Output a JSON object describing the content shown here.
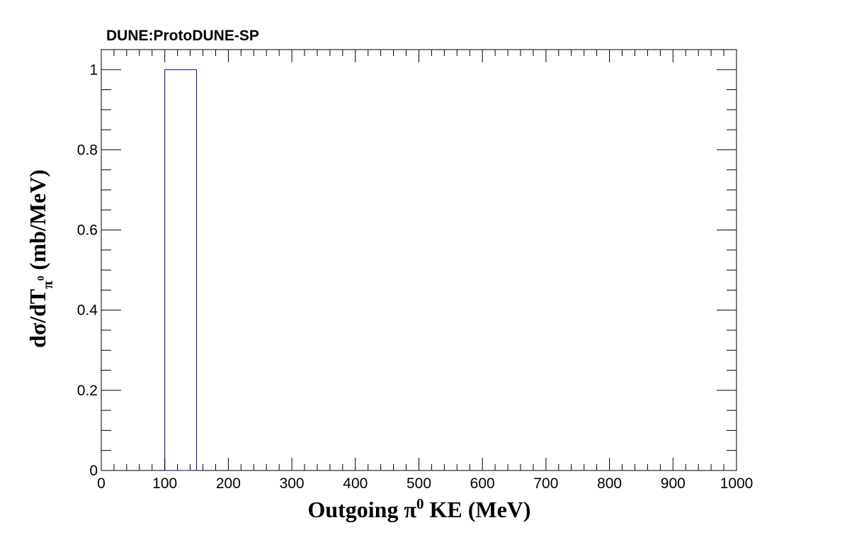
{
  "chart_data": {
    "type": "bar",
    "title": "DUNE:ProtoDUNE-SP",
    "xlabel": {
      "prefix": "Outgoing  π",
      "sup": "0",
      "suffix": " KE (MeV)"
    },
    "ylabel": {
      "prefix": "dσ/dT",
      "sub": "π",
      "subsup": "0",
      "suffix": " (mb/MeV)"
    },
    "xlim": [
      0,
      1000
    ],
    "ylim": [
      0,
      1.05
    ],
    "x_ticks": [
      0,
      100,
      200,
      300,
      400,
      500,
      600,
      700,
      800,
      900,
      1000
    ],
    "x_tick_labels": [
      "0",
      "100",
      "200",
      "300",
      "400",
      "500",
      "600",
      "700",
      "800",
      "900",
      "1000"
    ],
    "y_ticks": [
      0,
      0.2,
      0.4,
      0.6,
      0.8,
      1
    ],
    "y_tick_labels": [
      "0",
      "0.2",
      "0.4",
      "0.6",
      "0.8",
      "1"
    ],
    "x_minor_step": 20,
    "y_minor_step": 0.05,
    "grid": false,
    "bins": [
      {
        "x_low": 100,
        "x_high": 150,
        "value": 1
      }
    ],
    "bar_color": "#000080"
  }
}
